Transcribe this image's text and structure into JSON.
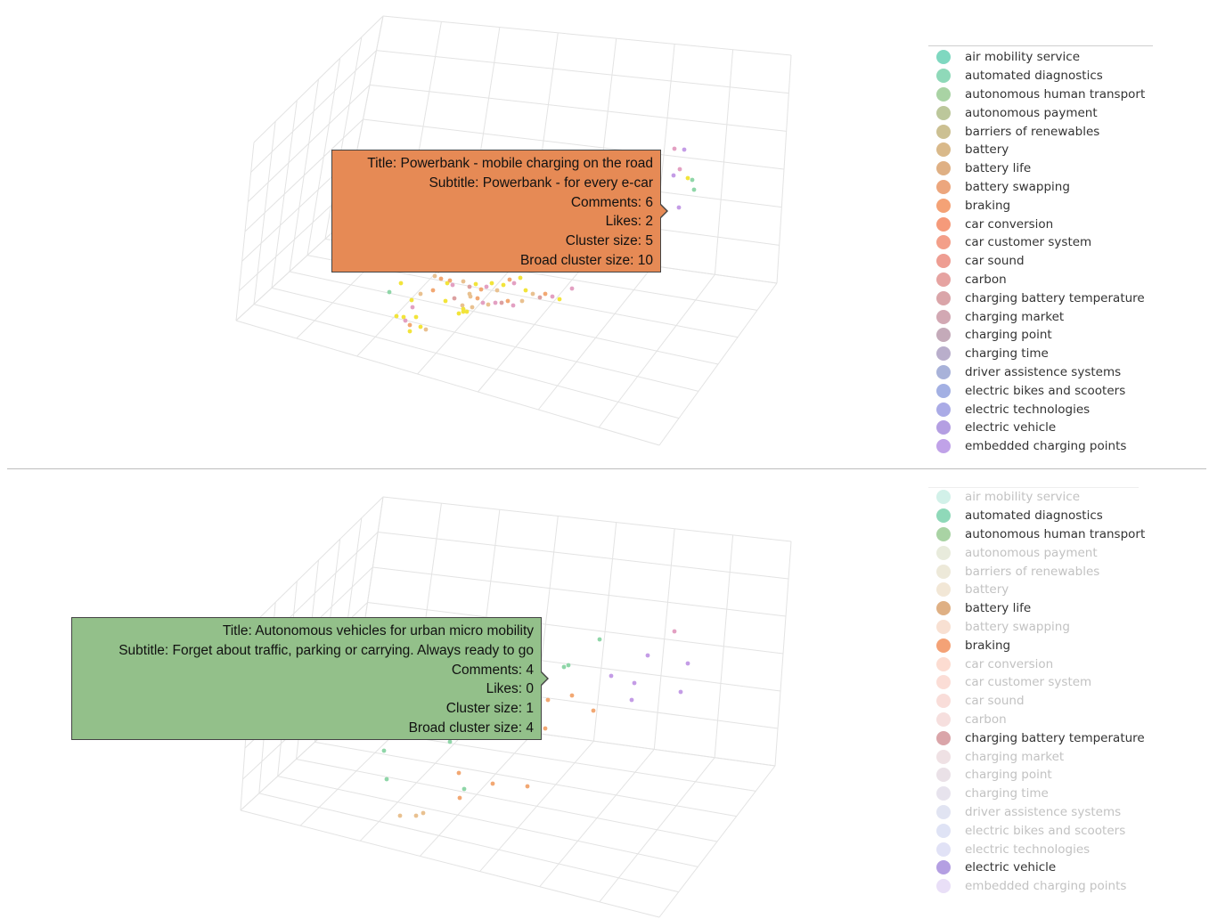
{
  "legend": [
    {
      "label": "air mobility service",
      "color": "#7fd8c0"
    },
    {
      "label": "automated diagnostics",
      "color": "#8fd9b9"
    },
    {
      "label": "autonomous human transport",
      "color": "#a9d3a4"
    },
    {
      "label": "autonomous payment",
      "color": "#bcc79b"
    },
    {
      "label": "barriers of renewables",
      "color": "#ccc092"
    },
    {
      "label": "battery",
      "color": "#d9b98a"
    },
    {
      "label": "battery life",
      "color": "#dfb084"
    },
    {
      "label": "battery swapping",
      "color": "#eca67d"
    },
    {
      "label": "braking",
      "color": "#f4a276"
    },
    {
      "label": "car conversion",
      "color": "#f59a7a"
    },
    {
      "label": "car customer system",
      "color": "#f39f89"
    },
    {
      "label": "car sound",
      "color": "#ee9d92"
    },
    {
      "label": "carbon",
      "color": "#e6a3a1"
    },
    {
      "label": "charging battery temperature",
      "color": "#daa5a9"
    },
    {
      "label": "charging market",
      "color": "#d2a8b3"
    },
    {
      "label": "charging point",
      "color": "#c4aab9"
    },
    {
      "label": "charging time",
      "color": "#b9aecb"
    },
    {
      "label": "driver assistence systems",
      "color": "#a8b2d9"
    },
    {
      "label": "electric bikes and scooters",
      "color": "#a3b0e3"
    },
    {
      "label": "electric technologies",
      "color": "#aaabe6"
    },
    {
      "label": "electric vehicle",
      "color": "#b49fe2"
    },
    {
      "label": "embedded charging points",
      "color": "#c0a2e8"
    }
  ],
  "bottom_active": [
    false,
    true,
    true,
    false,
    false,
    false,
    true,
    false,
    true,
    false,
    false,
    false,
    false,
    true,
    false,
    false,
    false,
    false,
    false,
    false,
    true,
    false
  ],
  "tooltip_top": {
    "title": "Title:  Powerbank - mobile charging on the road",
    "subtitle": "Subtitle: Powerbank - for every e-car",
    "comments": "Comments: 6",
    "likes": "Likes: 2",
    "cluster": "Cluster size: 5",
    "broad": "Broad cluster size: 10",
    "color": "#e68a55"
  },
  "tooltip_bottom": {
    "title": "Title:  Autonomous vehicles for urban micro mobility",
    "subtitle": "Subtitle: Forget about traffic, parking or carrying. Always ready to go",
    "comments": "Comments: 4",
    "likes": "Likes: 0",
    "cluster": "Cluster size: 1",
    "broad": "Broad cluster size: 4",
    "color": "#93c08a"
  },
  "chart_data": [
    {
      "type": "scatter",
      "subtype": "3d",
      "title": "",
      "series_source": "legend",
      "visible_series": "all",
      "grid": true,
      "legend_placement": "right",
      "hover_point": {
        "title": "Powerbank - mobile charging on the road",
        "subtitle": "Powerbank - for every e-car",
        "comments": 6,
        "likes": 2,
        "cluster_size": 5,
        "broad_cluster_size": 10
      }
    },
    {
      "type": "scatter",
      "subtype": "3d",
      "title": "",
      "series_source": "legend",
      "visible_series": [
        "automated diagnostics",
        "autonomous human transport",
        "battery life",
        "braking",
        "charging battery temperature",
        "electric vehicle"
      ],
      "grid": true,
      "legend_placement": "right",
      "hover_point": {
        "title": "Autonomous vehicles for urban micro mobility",
        "subtitle": "Forget about traffic, parking or carrying. Always ready to go",
        "comments": 4,
        "likes": 0,
        "cluster_size": 1,
        "broad_cluster_size": 4
      }
    }
  ]
}
